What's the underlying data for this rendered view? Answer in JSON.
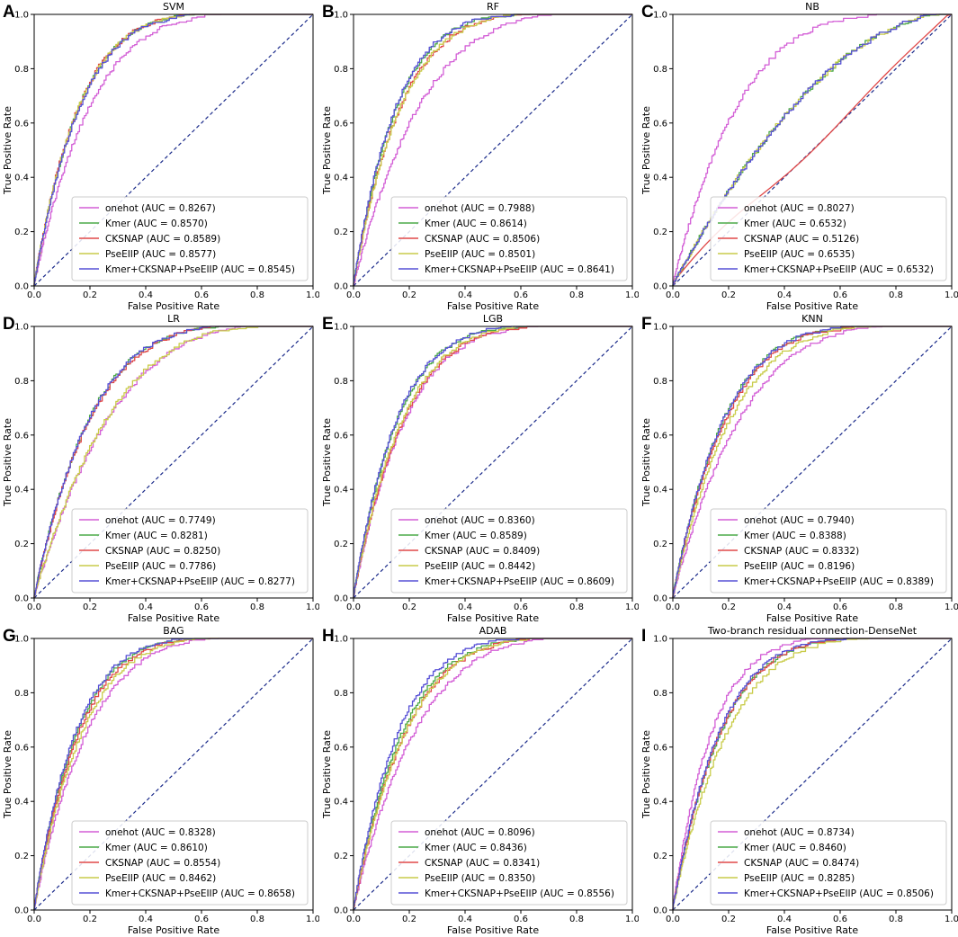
{
  "figure": {
    "x_axis_label": "False Positive Rate",
    "y_axis_label": "True Positive Rate",
    "series_colors": {
      "onehot": "#d35fd6",
      "Kmer": "#4caa48",
      "CKSNAP": "#e04848",
      "PseEIIP": "#c9cc4a",
      "Kmer+CKSNAP+PseEIIP": "#5750d6"
    },
    "diagonal_color": "#1a2a8a"
  },
  "chart_data": [
    {
      "type": "line",
      "panel": "A",
      "title": "SVM",
      "xlabel": "False Positive Rate",
      "ylabel": "True Positive Rate",
      "xlim": [
        0,
        1
      ],
      "ylim": [
        0,
        1
      ],
      "ticks": [
        "0.0",
        "0.2",
        "0.4",
        "0.6",
        "0.8",
        "1.0"
      ],
      "legend_position": "lower-right",
      "series": [
        {
          "name": "onehot",
          "auc": "0.8267",
          "label": "onehot (AUC = 0.8267)"
        },
        {
          "name": "Kmer",
          "auc": "0.8570",
          "label": "Kmer (AUC = 0.8570)"
        },
        {
          "name": "CKSNAP",
          "auc": "0.8589",
          "label": "CKSNAP (AUC = 0.8589)"
        },
        {
          "name": "PseEIIP",
          "auc": "0.8577",
          "label": "PseEIIP (AUC = 0.8577)"
        },
        {
          "name": "Kmer+CKSNAP+PseEIIP",
          "auc": "0.8545",
          "label": "Kmer+CKSNAP+PseEIIP (AUC = 0.8545)"
        }
      ]
    },
    {
      "type": "line",
      "panel": "B",
      "title": "RF",
      "xlabel": "False Positive Rate",
      "ylabel": "True Positive Rate",
      "xlim": [
        0,
        1
      ],
      "ylim": [
        0,
        1
      ],
      "ticks": [
        "0.0",
        "0.2",
        "0.4",
        "0.6",
        "0.8",
        "1.0"
      ],
      "legend_position": "lower-right",
      "series": [
        {
          "name": "onehot",
          "auc": "0.7988",
          "label": "onehot (AUC = 0.7988)"
        },
        {
          "name": "Kmer",
          "auc": "0.8614",
          "label": "Kmer (AUC = 0.8614)"
        },
        {
          "name": "CKSNAP",
          "auc": "0.8506",
          "label": "CKSNAP (AUC = 0.8506)"
        },
        {
          "name": "PseEIIP",
          "auc": "0.8501",
          "label": "PseEIIP (AUC = 0.8501)"
        },
        {
          "name": "Kmer+CKSNAP+PseEIIP",
          "auc": "0.8641",
          "label": "Kmer+CKSNAP+PseEIIP (AUC = 0.8641)"
        }
      ]
    },
    {
      "type": "line",
      "panel": "C",
      "title": "NB",
      "xlabel": "False Positive Rate",
      "ylabel": "True Positive Rate",
      "xlim": [
        0,
        1
      ],
      "ylim": [
        0,
        1
      ],
      "ticks": [
        "0.0",
        "0.2",
        "0.4",
        "0.6",
        "0.8",
        "1.0"
      ],
      "legend_position": "lower-right",
      "series": [
        {
          "name": "onehot",
          "auc": "0.8027",
          "label": "onehot (AUC = 0.8027)"
        },
        {
          "name": "Kmer",
          "auc": "0.6532",
          "label": "Kmer (AUC = 0.6532)"
        },
        {
          "name": "CKSNAP",
          "auc": "0.5126",
          "label": "CKSNAP (AUC = 0.5126)"
        },
        {
          "name": "PseEIIP",
          "auc": "0.6535",
          "label": "PseEIIP (AUC = 0.6535)"
        },
        {
          "name": "Kmer+CKSNAP+PseEIIP",
          "auc": "0.6532",
          "label": "Kmer+CKSNAP+PseEIIP (AUC = 0.6532)"
        }
      ]
    },
    {
      "type": "line",
      "panel": "D",
      "title": "LR",
      "xlabel": "False Positive Rate",
      "ylabel": "True Positive Rate",
      "xlim": [
        0,
        1
      ],
      "ylim": [
        0,
        1
      ],
      "ticks": [
        "0.0",
        "0.2",
        "0.4",
        "0.6",
        "0.8",
        "1.0"
      ],
      "legend_position": "lower-right",
      "series": [
        {
          "name": "onehot",
          "auc": "0.7749",
          "label": "onehot (AUC = 0.7749)"
        },
        {
          "name": "Kmer",
          "auc": "0.8281",
          "label": "Kmer (AUC = 0.8281)"
        },
        {
          "name": "CKSNAP",
          "auc": "0.8250",
          "label": "CKSNAP (AUC = 0.8250)"
        },
        {
          "name": "PseEIIP",
          "auc": "0.7786",
          "label": "PseEIIP (AUC = 0.7786)"
        },
        {
          "name": "Kmer+CKSNAP+PseEIIP",
          "auc": "0.8277",
          "label": "Kmer+CKSNAP+PseEIIP (AUC = 0.8277)"
        }
      ]
    },
    {
      "type": "line",
      "panel": "E",
      "title": "LGB",
      "xlabel": "False Positive Rate",
      "ylabel": "True Positive Rate",
      "xlim": [
        0,
        1
      ],
      "ylim": [
        0,
        1
      ],
      "ticks": [
        "0.0",
        "0.2",
        "0.4",
        "0.6",
        "0.8",
        "1.0"
      ],
      "legend_position": "lower-right",
      "series": [
        {
          "name": "onehot",
          "auc": "0.8360",
          "label": "onehot (AUC = 0.8360)"
        },
        {
          "name": "Kmer",
          "auc": "0.8589",
          "label": "Kmer (AUC = 0.8589)"
        },
        {
          "name": "CKSNAP",
          "auc": "0.8409",
          "label": "CKSNAP (AUC = 0.8409)"
        },
        {
          "name": "PseEIIP",
          "auc": "0.8442",
          "label": "PseEIIP (AUC = 0.8442)"
        },
        {
          "name": "Kmer+CKSNAP+PseEIIP",
          "auc": "0.8609",
          "label": "Kmer+CKSNAP+PseEIIP (AUC = 0.8609)"
        }
      ]
    },
    {
      "type": "line",
      "panel": "F",
      "title": "KNN",
      "xlabel": "False Positive Rate",
      "ylabel": "True Positive Rate",
      "xlim": [
        0,
        1
      ],
      "ylim": [
        0,
        1
      ],
      "ticks": [
        "0.0",
        "0.2",
        "0.4",
        "0.6",
        "0.8",
        "1.0"
      ],
      "legend_position": "lower-right",
      "series": [
        {
          "name": "onehot",
          "auc": "0.7940",
          "label": "onehot (AUC = 0.7940)"
        },
        {
          "name": "Kmer",
          "auc": "0.8388",
          "label": "Kmer (AUC = 0.8388)"
        },
        {
          "name": "CKSNAP",
          "auc": "0.8332",
          "label": "CKSNAP (AUC = 0.8332)"
        },
        {
          "name": "PseEIIP",
          "auc": "0.8196",
          "label": "PseEIIP (AUC = 0.8196)"
        },
        {
          "name": "Kmer+CKSNAP+PseEIIP",
          "auc": "0.8389",
          "label": "Kmer+CKSNAP+PseEIIP (AUC = 0.8389)"
        }
      ]
    },
    {
      "type": "line",
      "panel": "G",
      "title": "BAG",
      "xlabel": "False Positive Rate",
      "ylabel": "True Positive Rate",
      "xlim": [
        0,
        1
      ],
      "ylim": [
        0,
        1
      ],
      "ticks": [
        "0.0",
        "0.2",
        "0.4",
        "0.6",
        "0.8",
        "1.0"
      ],
      "legend_position": "lower-right",
      "series": [
        {
          "name": "onehot",
          "auc": "0.8328",
          "label": "onehot (AUC = 0.8328)"
        },
        {
          "name": "Kmer",
          "auc": "0.8610",
          "label": "Kmer (AUC = 0.8610)"
        },
        {
          "name": "CKSNAP",
          "auc": "0.8554",
          "label": "CKSNAP (AUC = 0.8554)"
        },
        {
          "name": "PseEIIP",
          "auc": "0.8462",
          "label": "PseEIIP (AUC = 0.8462)"
        },
        {
          "name": "Kmer+CKSNAP+PseEIIP",
          "auc": "0.8658",
          "label": "Kmer+CKSNAP+PseEIIP (AUC = 0.8658)"
        }
      ]
    },
    {
      "type": "line",
      "panel": "H",
      "title": "ADAB",
      "xlabel": "False Positive Rate",
      "ylabel": "True Positive Rate",
      "xlim": [
        0,
        1
      ],
      "ylim": [
        0,
        1
      ],
      "ticks": [
        "0.0",
        "0.2",
        "0.4",
        "0.6",
        "0.8",
        "1.0"
      ],
      "legend_position": "lower-right",
      "series": [
        {
          "name": "onehot",
          "auc": "0.8096",
          "label": "onehot (AUC = 0.8096)"
        },
        {
          "name": "Kmer",
          "auc": "0.8436",
          "label": "Kmer (AUC = 0.8436)"
        },
        {
          "name": "CKSNAP",
          "auc": "0.8341",
          "label": "CKSNAP (AUC = 0.8341)"
        },
        {
          "name": "PseEIIP",
          "auc": "0.8350",
          "label": "PseEIIP (AUC = 0.8350)"
        },
        {
          "name": "Kmer+CKSNAP+PseEIIP",
          "auc": "0.8556",
          "label": "Kmer+CKSNAP+PseEIIP (AUC = 0.8556)"
        }
      ]
    },
    {
      "type": "line",
      "panel": "I",
      "title": "Two-branch residual connection-DenseNet",
      "xlabel": "False Positive Rate",
      "ylabel": "True Positive Rate",
      "xlim": [
        0,
        1
      ],
      "ylim": [
        0,
        1
      ],
      "ticks": [
        "0.0",
        "0.2",
        "0.4",
        "0.6",
        "0.8",
        "1.0"
      ],
      "legend_position": "lower-right",
      "series": [
        {
          "name": "onehot",
          "auc": "0.8734",
          "label": "onehot (AUC = 0.8734)"
        },
        {
          "name": "Kmer",
          "auc": "0.8460",
          "label": "Kmer (AUC = 0.8460)"
        },
        {
          "name": "CKSNAP",
          "auc": "0.8474",
          "label": "CKSNAP (AUC = 0.8474)"
        },
        {
          "name": "PseEIIP",
          "auc": "0.8285",
          "label": "PseEIIP (AUC = 0.8285)"
        },
        {
          "name": "Kmer+CKSNAP+PseEIIP",
          "auc": "0.8506",
          "label": "Kmer+CKSNAP+PseEIIP (AUC = 0.8506)"
        }
      ]
    }
  ]
}
